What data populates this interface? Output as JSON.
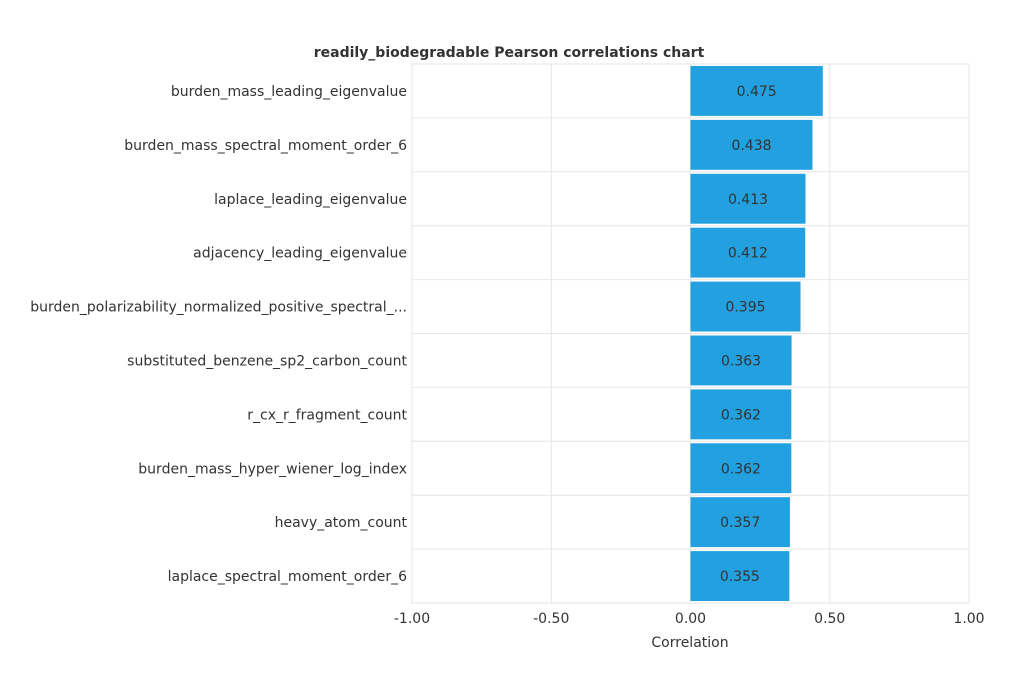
{
  "chart_data": {
    "type": "bar",
    "orientation": "horizontal",
    "title": "readily_biodegradable Pearson correlations chart",
    "xlabel": "Correlation",
    "ylabel": "",
    "xlim": [
      -1.0,
      1.0
    ],
    "x_ticks": [
      -1.0,
      -0.5,
      0.0,
      0.5,
      1.0
    ],
    "x_tick_labels": [
      "-1.00",
      "-0.50",
      "0.00",
      "0.50",
      "1.00"
    ],
    "grid": true,
    "bar_color": "#22a0df",
    "categories": [
      "burden_mass_leading_eigenvalue",
      "burden_mass_spectral_moment_order_6",
      "laplace_leading_eigenvalue",
      "adjacency_leading_eigenvalue",
      "burden_polarizability_normalized_positive_spectral_...",
      "substituted_benzene_sp2_carbon_count",
      "r_cx_r_fragment_count",
      "burden_mass_hyper_wiener_log_index",
      "heavy_atom_count",
      "laplace_spectral_moment_order_6"
    ],
    "values": [
      0.475,
      0.438,
      0.413,
      0.412,
      0.395,
      0.363,
      0.362,
      0.362,
      0.357,
      0.355
    ],
    "value_labels": [
      "0.475",
      "0.438",
      "0.413",
      "0.412",
      "0.395",
      "0.363",
      "0.362",
      "0.362",
      "0.357",
      "0.355"
    ]
  }
}
